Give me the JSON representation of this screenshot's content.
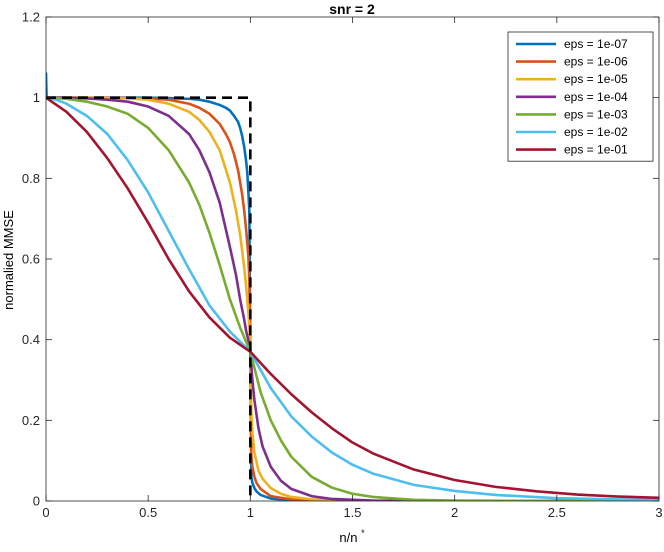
{
  "chart_data": {
    "type": "line",
    "title": "snr = 2",
    "xlabel_main": "n/n",
    "xlabel_sup": "*",
    "ylabel": "normalied MMSE",
    "xlim": [
      0,
      3
    ],
    "ylim": [
      0,
      1.2
    ],
    "xticks": [
      0,
      0.5,
      1,
      1.5,
      2,
      2.5,
      3
    ],
    "xtick_labels": [
      "0",
      "0.5",
      "1",
      "1.5",
      "2",
      "2.5",
      "3"
    ],
    "yticks": [
      0,
      0.2,
      0.4,
      0.6,
      0.8,
      1.0,
      1.2
    ],
    "ytick_labels": [
      "0",
      "0.2",
      "0.4",
      "0.6",
      "0.8",
      "1",
      "1.2"
    ],
    "grid": false,
    "legend_position": "top-right",
    "series": [
      {
        "name": "eps = 1e-07",
        "color": "#0072BD",
        "x": [
          0,
          0.003,
          0.006,
          0.02,
          0.1,
          0.2,
          0.3,
          0.4,
          0.5,
          0.6,
          0.7,
          0.75,
          0.8,
          0.85,
          0.88,
          0.9,
          0.92,
          0.94,
          0.95,
          0.96,
          0.97,
          0.98,
          0.985,
          0.99,
          0.995,
          1.0,
          1.005,
          1.01,
          1.02,
          1.03,
          1.05,
          1.1,
          1.2,
          1.3,
          1.5,
          2.0,
          3.0
        ],
        "y": [
          1.06,
          1.0,
          1.0,
          1.0,
          1.0,
          1.0,
          1.0,
          1.0,
          1.0,
          0.999,
          0.997,
          0.995,
          0.99,
          0.982,
          0.975,
          0.968,
          0.955,
          0.94,
          0.925,
          0.905,
          0.878,
          0.84,
          0.815,
          0.77,
          0.72,
          0.37,
          0.06,
          0.045,
          0.032,
          0.024,
          0.015,
          0.006,
          0.002,
          0.0008,
          0.0002,
          0.0,
          0.0
        ]
      },
      {
        "name": "eps = 1e-06",
        "color": "#D95319",
        "x": [
          0,
          0.05,
          0.1,
          0.2,
          0.3,
          0.4,
          0.5,
          0.6,
          0.7,
          0.75,
          0.8,
          0.85,
          0.88,
          0.9,
          0.92,
          0.94,
          0.96,
          0.97,
          0.98,
          0.99,
          0.995,
          1.0,
          1.005,
          1.01,
          1.02,
          1.03,
          1.05,
          1.1,
          1.2,
          1.3,
          1.5,
          2.0,
          3.0
        ],
        "y": [
          1.0,
          1.0,
          1.0,
          1.0,
          1.0,
          0.999,
          0.998,
          0.995,
          0.985,
          0.975,
          0.96,
          0.935,
          0.91,
          0.89,
          0.86,
          0.82,
          0.76,
          0.72,
          0.67,
          0.61,
          0.55,
          0.37,
          0.11,
          0.085,
          0.06,
          0.045,
          0.03,
          0.012,
          0.004,
          0.0015,
          0.0003,
          0.0,
          0.0
        ]
      },
      {
        "name": "eps = 1e-05",
        "color": "#EDB120",
        "x": [
          0,
          0.05,
          0.1,
          0.2,
          0.3,
          0.4,
          0.5,
          0.6,
          0.7,
          0.75,
          0.8,
          0.85,
          0.9,
          0.93,
          0.95,
          0.97,
          0.98,
          0.99,
          0.995,
          1.0,
          1.005,
          1.01,
          1.02,
          1.04,
          1.06,
          1.1,
          1.15,
          1.2,
          1.3,
          1.5,
          2.0,
          3.0
        ],
        "y": [
          1.0,
          1.0,
          1.0,
          1.0,
          0.999,
          0.998,
          0.995,
          0.985,
          0.965,
          0.945,
          0.915,
          0.87,
          0.79,
          0.72,
          0.66,
          0.58,
          0.53,
          0.47,
          0.43,
          0.37,
          0.22,
          0.17,
          0.12,
          0.075,
          0.055,
          0.032,
          0.018,
          0.01,
          0.004,
          0.0008,
          0.0,
          0.0
        ]
      },
      {
        "name": "eps = 1e-04",
        "color": "#7E2F8E",
        "x": [
          0,
          0.05,
          0.1,
          0.2,
          0.3,
          0.4,
          0.5,
          0.6,
          0.7,
          0.75,
          0.8,
          0.85,
          0.9,
          0.93,
          0.95,
          0.97,
          0.98,
          0.99,
          1.0,
          1.01,
          1.02,
          1.04,
          1.06,
          1.1,
          1.15,
          1.2,
          1.3,
          1.4,
          1.6,
          2.0,
          3.0
        ],
        "y": [
          1.0,
          1.0,
          1.0,
          0.998,
          0.995,
          0.99,
          0.978,
          0.955,
          0.91,
          0.87,
          0.815,
          0.74,
          0.63,
          0.56,
          0.5,
          0.45,
          0.42,
          0.4,
          0.37,
          0.3,
          0.25,
          0.18,
          0.135,
          0.085,
          0.05,
          0.03,
          0.012,
          0.005,
          0.001,
          0.0,
          0.0
        ]
      },
      {
        "name": "eps = 1e-03",
        "color": "#77AC30",
        "x": [
          0,
          0.05,
          0.1,
          0.2,
          0.3,
          0.4,
          0.5,
          0.6,
          0.7,
          0.75,
          0.8,
          0.85,
          0.9,
          0.95,
          1.0,
          1.05,
          1.1,
          1.15,
          1.2,
          1.3,
          1.4,
          1.5,
          1.6,
          1.8,
          2.0,
          2.5,
          3.0
        ],
        "y": [
          1.0,
          0.999,
          0.997,
          0.99,
          0.978,
          0.96,
          0.925,
          0.87,
          0.79,
          0.735,
          0.665,
          0.585,
          0.5,
          0.43,
          0.37,
          0.27,
          0.2,
          0.15,
          0.11,
          0.06,
          0.033,
          0.018,
          0.01,
          0.003,
          0.001,
          0.0,
          0.0
        ]
      },
      {
        "name": "eps = 1e-02",
        "color": "#4DBEEE",
        "x": [
          0,
          0.05,
          0.1,
          0.2,
          0.3,
          0.4,
          0.5,
          0.6,
          0.7,
          0.8,
          0.9,
          1.0,
          1.1,
          1.2,
          1.3,
          1.4,
          1.5,
          1.6,
          1.8,
          2.0,
          2.2,
          2.5,
          2.8,
          3.0
        ],
        "y": [
          1.0,
          0.995,
          0.985,
          0.955,
          0.91,
          0.845,
          0.765,
          0.67,
          0.575,
          0.485,
          0.42,
          0.37,
          0.28,
          0.21,
          0.16,
          0.12,
          0.09,
          0.068,
          0.04,
          0.025,
          0.015,
          0.007,
          0.004,
          0.003
        ]
      },
      {
        "name": "eps = 1e-01",
        "color": "#A2142F",
        "x": [
          0,
          0.1,
          0.2,
          0.3,
          0.4,
          0.5,
          0.6,
          0.7,
          0.8,
          0.9,
          1.0,
          1.1,
          1.2,
          1.3,
          1.4,
          1.5,
          1.6,
          1.8,
          2.0,
          2.2,
          2.4,
          2.6,
          2.8,
          3.0
        ],
        "y": [
          1.0,
          0.965,
          0.915,
          0.85,
          0.775,
          0.69,
          0.6,
          0.52,
          0.455,
          0.405,
          0.37,
          0.315,
          0.265,
          0.22,
          0.18,
          0.145,
          0.118,
          0.078,
          0.052,
          0.035,
          0.024,
          0.016,
          0.011,
          0.008
        ]
      }
    ],
    "reference_curve": {
      "style": "dashed",
      "color": "#000000",
      "x": [
        0,
        1,
        1
      ],
      "y": [
        1,
        1,
        0
      ]
    }
  }
}
